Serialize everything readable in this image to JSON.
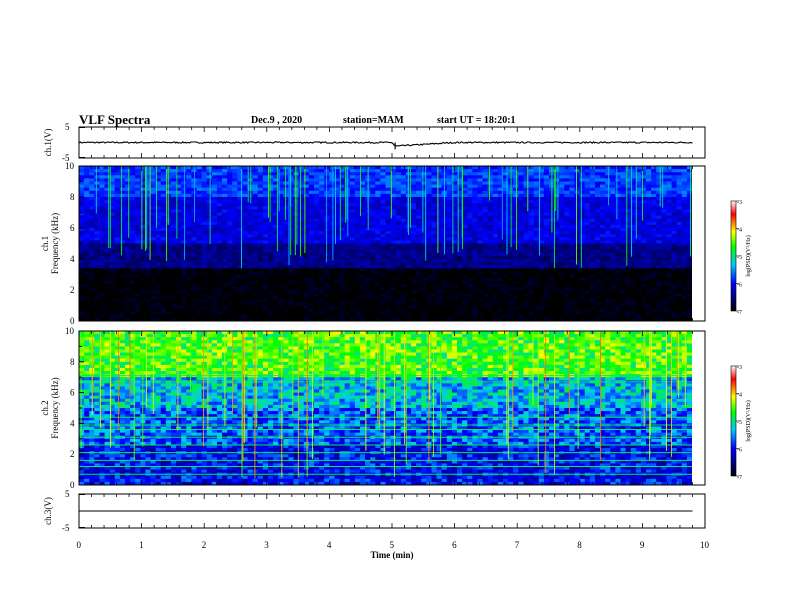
{
  "header": {
    "title": "VLF Spectra",
    "date": "Dec.9 , 2020",
    "station": "station=MAM",
    "start": "start UT = 18:20:1"
  },
  "chart_data": [
    {
      "type": "line",
      "panel": "ch1-waveform",
      "ylabel": "ch.1(V)",
      "ylim": [
        -5,
        5
      ],
      "yticks": [
        "5",
        "-5"
      ],
      "xlim": [
        0,
        10
      ],
      "x": [
        0,
        1,
        2,
        3,
        4,
        5,
        5.05,
        6,
        7,
        8,
        9,
        9.8
      ],
      "y": [
        0,
        0,
        0,
        0,
        0,
        0,
        -1.2,
        0,
        0,
        0,
        0,
        0
      ],
      "note_visible": "near-constant signal around 0 V with small noise"
    },
    {
      "type": "heatmap",
      "panel": "ch1-spectrogram",
      "ylabel": "ch.1\nFrequency (kHz)",
      "ylim": [
        0,
        10
      ],
      "yticks": [
        "0",
        "2",
        "4",
        "6",
        "8",
        "10"
      ],
      "xlim": [
        0,
        9.8
      ],
      "colorbar": {
        "label": "log(PSD)(V²/Hz)",
        "range": [
          -7,
          -3
        ],
        "ticks": [
          "-3",
          "-4",
          "-5",
          "-6",
          "-7"
        ]
      },
      "background_bands_kHz": [
        [
          0,
          3.3,
          -7.0
        ],
        [
          3.3,
          5,
          -6.4
        ],
        [
          5,
          8,
          -6.0
        ],
        [
          8,
          10,
          -5.7
        ]
      ]
    },
    {
      "type": "heatmap",
      "panel": "ch2-spectrogram",
      "ylabel": "ch.2\nFrequency (kHz)",
      "ylim": [
        0,
        10
      ],
      "yticks": [
        "0",
        "2",
        "4",
        "6",
        "8",
        "10"
      ],
      "xlim": [
        0,
        9.8
      ],
      "colorbar": {
        "label": "log(PSD)(V²/Hz)",
        "range": [
          -7,
          -3
        ],
        "ticks": [
          "-3",
          "-4",
          "-5",
          "-6",
          "-7"
        ]
      },
      "background_bands_kHz": [
        [
          0,
          2.5,
          -5.9
        ],
        [
          2.5,
          5,
          -5.6
        ],
        [
          5,
          7,
          -5.3
        ],
        [
          7,
          10,
          -4.6
        ]
      ],
      "horizontal_lines_kHz": [
        0.7,
        1.2,
        1.6,
        2.1,
        2.6,
        3.1,
        3.6,
        3.9,
        4.4,
        6.7,
        7.1
      ]
    },
    {
      "type": "line",
      "panel": "ch3-waveform",
      "ylabel": "ch.3(V)",
      "ylim": [
        -5,
        5
      ],
      "yticks": [
        "5",
        "-5"
      ],
      "xlim": [
        0,
        10
      ],
      "x": [
        0,
        9.8
      ],
      "y": [
        0,
        0
      ]
    }
  ],
  "xaxis": {
    "label": "Time (min)",
    "ticks": [
      "0",
      "1",
      "2",
      "3",
      "4",
      "5",
      "6",
      "7",
      "8",
      "9",
      "10"
    ]
  },
  "colors": {
    "spectrogram_low": "#000020",
    "spectrogram_mid": "#1e32d2",
    "spectrogram_high": "#ff0000",
    "colormap": [
      "#000000",
      "#00007f",
      "#0000ff",
      "#00c8ff",
      "#00ff00",
      "#ffff00",
      "#ff0000",
      "#ffffff"
    ]
  }
}
